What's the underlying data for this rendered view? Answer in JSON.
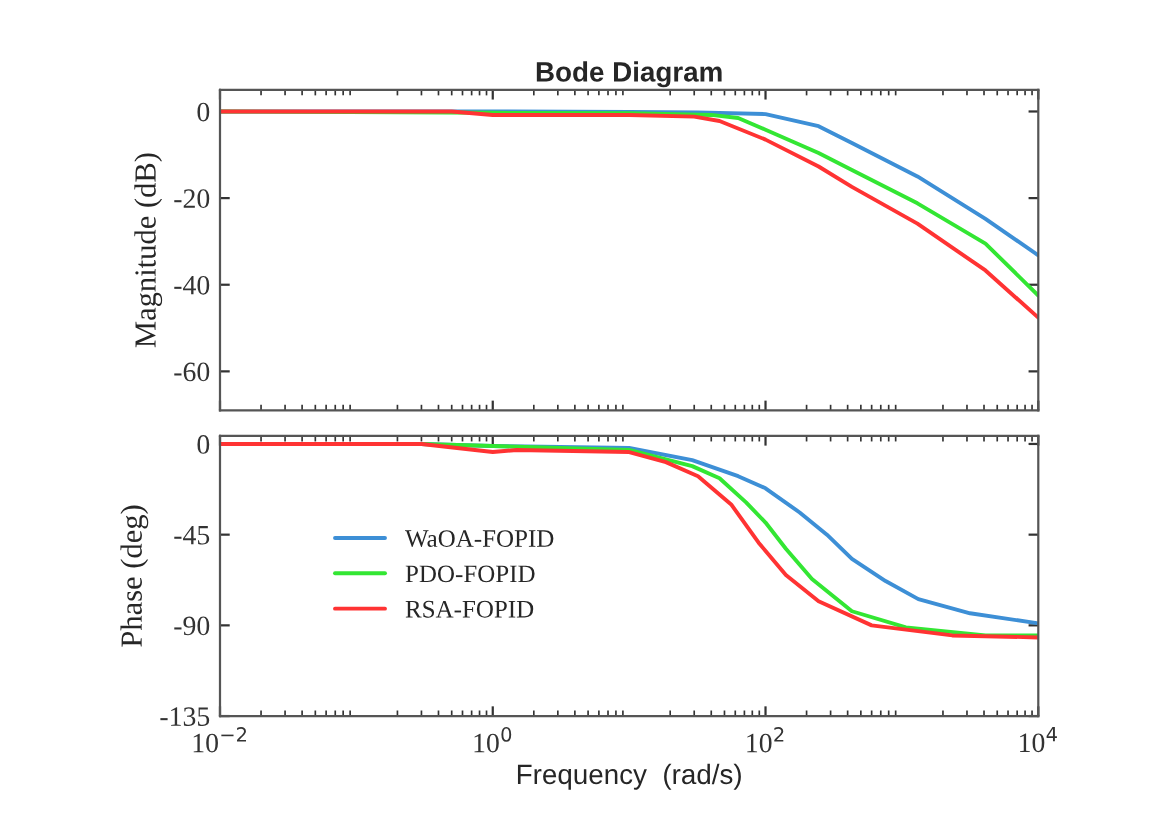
{
  "chart_data": [
    {
      "type": "line",
      "title": "Bode Diagram",
      "ylabel": "Magnitude (dB)",
      "log": "x",
      "grid": false,
      "legend": false,
      "tick_labels": "y",
      "xlim": [
        0.01,
        10000
      ],
      "xticks": [
        0.01,
        1,
        100,
        10000
      ],
      "ylim": [
        -69,
        5
      ],
      "yticks": [
        -60,
        -40,
        -20,
        0
      ],
      "series": [
        {
          "color": "#3d8fd6",
          "x": [
            0.01,
            1,
            10,
            31.6,
            100,
            245,
            430,
            1300,
            4100,
            10000
          ],
          "values": [
            0,
            0,
            -0.1,
            -0.2,
            -0.6,
            -3.4,
            -7.3,
            -15,
            -24.8,
            -33.2
          ]
        },
        {
          "color": "#33e633",
          "x": [
            0.01,
            1,
            10,
            40,
            63,
            100,
            245,
            430,
            1300,
            4100,
            10000
          ],
          "values": [
            0,
            -0.3,
            -0.4,
            -0.8,
            -1.5,
            -4.2,
            -9.6,
            -13.5,
            -21.2,
            -30.5,
            -42.5
          ]
        },
        {
          "color": "#ff3333",
          "x": [
            0.01,
            0.5,
            1,
            10,
            30,
            46,
            100,
            245,
            430,
            1300,
            4100,
            10000
          ],
          "values": [
            0,
            0,
            -0.8,
            -0.8,
            -1.2,
            -2.2,
            -6.5,
            -12.7,
            -17.4,
            -25.9,
            -36.7,
            -47.6
          ]
        }
      ]
    },
    {
      "type": "line",
      "xlabel": "Frequency  (rad/s)",
      "ylabel": "Phase (deg)",
      "log": "x",
      "grid": false,
      "legend": "left",
      "xlim": [
        0.01,
        10000
      ],
      "xticks": [
        {
          "value": 0.01,
          "label": "10$^{−2}$"
        },
        {
          "value": 1,
          "label": "10$^{0}$"
        },
        {
          "value": 100,
          "label": "10$^{2}$"
        },
        {
          "value": 10000,
          "label": "10$^{4}$"
        }
      ],
      "ylim": [
        -135,
        4
      ],
      "yticks": [
        -135,
        -90,
        -45,
        0
      ],
      "series": [
        {
          "name": "WaOA-FOPID",
          "color": "#3d8fd6",
          "x": [
            0.01,
            0.3,
            1,
            10,
            29,
            63,
            100,
            178,
            282,
            430,
            759,
            1320,
            3160,
            10000
          ],
          "values": [
            0,
            0,
            -1,
            -2,
            -8,
            -16,
            -22,
            -34,
            -45,
            -57,
            -68,
            -77,
            -84,
            -89
          ]
        },
        {
          "name": "PDO-FOPID",
          "color": "#33e633",
          "x": [
            0.01,
            0.3,
            1,
            10,
            29,
            46,
            72,
            100,
            141,
            219,
            430,
            1070,
            4100,
            10000
          ],
          "values": [
            0,
            0,
            -1,
            -3,
            -11,
            -17,
            -29,
            -39,
            -52,
            -67,
            -83,
            -91,
            -95,
            -95
          ]
        },
        {
          "name": "RSA-FOPID",
          "color": "#ff3333",
          "x": [
            0.01,
            0.3,
            1,
            1.5,
            10,
            18.6,
            32,
            56,
            89,
            141,
            245,
            600,
            2340,
            10000
          ],
          "values": [
            0,
            0,
            -4,
            -3,
            -4,
            -9,
            -16,
            -30,
            -49,
            -65,
            -78,
            -90,
            -95,
            -96
          ]
        }
      ]
    }
  ]
}
